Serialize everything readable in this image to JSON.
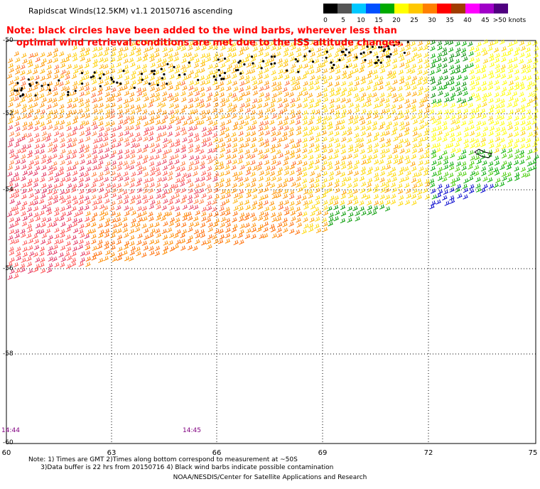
{
  "title": "Rapidscat Winds(12.5KM) v1.1 20150716 ascending",
  "note": {
    "line1": "Note: black circles have been added to the wind barbs, wherever less than",
    "line2": "optimal wind retrieval conditions are met due to the ISS altitude changes."
  },
  "legend": {
    "labels": [
      "0",
      "5",
      "10",
      "15",
      "20",
      "25",
      "30",
      "35",
      "40",
      "45",
      ">50 knots"
    ],
    "colors": [
      "#000000",
      "#555555",
      "#00c8ff",
      "#0050ff",
      "#00aa00",
      "#ffff00",
      "#ffc800",
      "#ff8000",
      "#ff0000",
      "#a03c00",
      "#ff00ff",
      "#a000c8",
      "#500080"
    ]
  },
  "axes": {
    "latitude_labels": [
      "-50",
      "-52",
      "-54",
      "-56",
      "-58",
      "-60"
    ],
    "longitude_labels": [
      "60",
      "63",
      "66",
      "69",
      "72",
      "75"
    ]
  },
  "times": [
    "14:44",
    "14:45"
  ],
  "footnote": {
    "line1": "Note: 1) Times are GMT 2)Times along bottom correspond to measurement at ~50S",
    "line2": "      3)Data buffer is 22 hrs from 20150716 4) Black wind barbs indicate possible contamination"
  },
  "credit": "NOAA/NESDIS/Center for Satellite Applications and Research"
}
